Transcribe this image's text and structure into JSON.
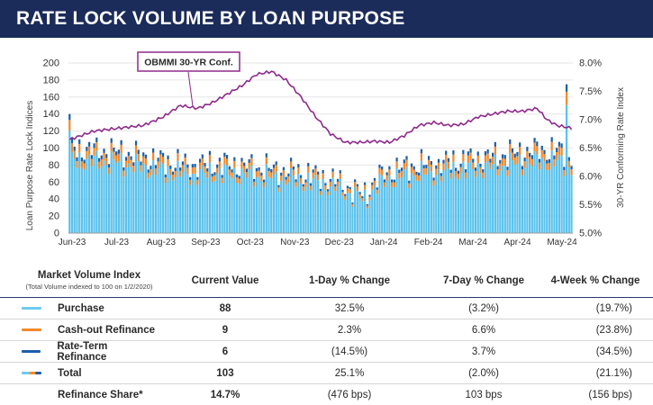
{
  "header": {
    "title": "RATE LOCK VOLUME BY LOAN PURPOSE"
  },
  "colors": {
    "purchase": "#5bc2ec",
    "cashout": "#f28a2c",
    "rateterm": "#1c5fa8",
    "obmmi": "#8e2a8b",
    "header_bg": "#1b2b5a"
  },
  "chart_data": {
    "type": "bar",
    "stacked": true,
    "ylabel": "Loan Purpose Rate Lock Indices",
    "y2label": "30-YR Conforming Rate Index",
    "ylim": [
      0,
      200
    ],
    "y2lim": [
      5.0,
      8.0
    ],
    "yticks": [
      "0",
      "20",
      "40",
      "60",
      "80",
      "100",
      "120",
      "140",
      "160",
      "180",
      "200"
    ],
    "y2ticks": [
      "5.0%",
      "5.5%",
      "6.0%",
      "6.5%",
      "7.0%",
      "7.5%",
      "8.0%"
    ],
    "xticks": [
      "Jun-23",
      "Jul-23",
      "Aug-23",
      "Sep-23",
      "Oct-23",
      "Nov-23",
      "Dec-23",
      "Jan-24",
      "Feb-24",
      "Mar-24",
      "Apr-24",
      "May-24"
    ],
    "series": [
      {
        "name": "Purchase"
      },
      {
        "name": "Cash-out Refinance"
      },
      {
        "name": "Rate-Term Refinance"
      }
    ],
    "line_series": {
      "name": "OBMMI 30-YR Conf.",
      "axis": "y2",
      "anchors": [
        [
          0,
          6.65
        ],
        [
          10,
          6.8
        ],
        [
          20,
          6.85
        ],
        [
          30,
          6.9
        ],
        [
          38,
          7.05
        ],
        [
          45,
          7.25
        ],
        [
          52,
          7.2
        ],
        [
          58,
          7.3
        ],
        [
          64,
          7.45
        ],
        [
          70,
          7.6
        ],
        [
          76,
          7.8
        ],
        [
          82,
          7.85
        ],
        [
          88,
          7.7
        ],
        [
          94,
          7.4
        ],
        [
          100,
          7.05
        ],
        [
          106,
          6.75
        ],
        [
          112,
          6.6
        ],
        [
          118,
          6.6
        ],
        [
          124,
          6.62
        ],
        [
          130,
          6.6
        ],
        [
          136,
          6.72
        ],
        [
          142,
          6.9
        ],
        [
          148,
          6.95
        ],
        [
          154,
          6.9
        ],
        [
          160,
          6.92
        ],
        [
          166,
          7.05
        ],
        [
          172,
          7.1
        ],
        [
          178,
          7.15
        ],
        [
          184,
          7.15
        ],
        [
          190,
          7.2
        ],
        [
          194,
          7.0
        ],
        [
          198,
          6.9
        ],
        [
          204,
          6.85
        ]
      ]
    },
    "volume_shape": {
      "total_anchors": [
        [
          0,
          100
        ],
        [
          10,
          98
        ],
        [
          20,
          96
        ],
        [
          30,
          90
        ],
        [
          40,
          84
        ],
        [
          50,
          80
        ],
        [
          60,
          82
        ],
        [
          70,
          80
        ],
        [
          80,
          76
        ],
        [
          90,
          73
        ],
        [
          100,
          68
        ],
        [
          108,
          62
        ],
        [
          115,
          52
        ],
        [
          120,
          45
        ],
        [
          124,
          62
        ],
        [
          130,
          74
        ],
        [
          140,
          80
        ],
        [
          150,
          82
        ],
        [
          160,
          86
        ],
        [
          170,
          90
        ],
        [
          180,
          94
        ],
        [
          190,
          98
        ],
        [
          200,
          97
        ],
        [
          204,
          90
        ]
      ],
      "share": [
        0.86,
        0.09,
        0.05
      ]
    }
  },
  "table": {
    "headers": {
      "index": "Market Volume Index",
      "index_sub": "(Total Volume indexed to 100 on 1/2/2020)",
      "current": "Current Value",
      "day1": "1-Day % Change",
      "day7": "7-Day % Change",
      "week4": "4-Week % Change"
    },
    "rows": [
      {
        "label": "Purchase",
        "current": "88",
        "day1": "32.5%",
        "day7": "(3.2%)",
        "week4": "(19.7%)",
        "color": "#6ecbef"
      },
      {
        "label": "Cash-out Refinance",
        "current": "9",
        "day1": "2.3%",
        "day7": "6.6%",
        "week4": "(23.8%)",
        "color": "#f28a2c"
      },
      {
        "label": "Rate-Term Refinance",
        "current": "6",
        "day1": "(14.5%)",
        "day7": "3.7%",
        "week4": "(34.5%)",
        "color": "#1c5fa8"
      },
      {
        "label": "Total",
        "current": "103",
        "day1": "25.1%",
        "day7": "(2.0%)",
        "week4": "(21.1%)"
      },
      {
        "label": "Refinance Share*",
        "current": "14.7%",
        "day1": "(476 bps)",
        "day7": "103 bps",
        "week4": "(156 bps)"
      }
    ]
  }
}
